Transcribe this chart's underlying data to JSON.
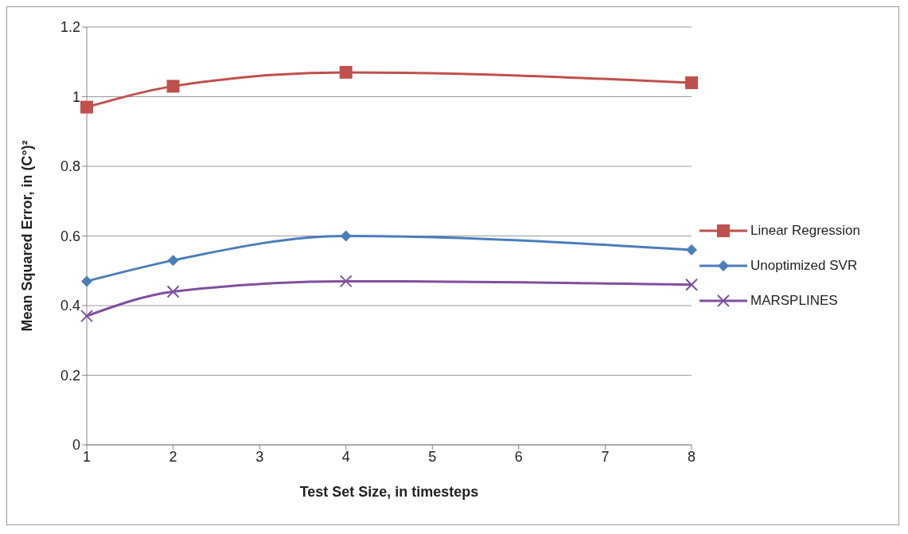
{
  "chart_data": {
    "type": "line",
    "xlabel": "Test Set Size, in timesteps",
    "ylabel": "Mean Squared Error, in (C°)²",
    "x": [
      1,
      2,
      4,
      8
    ],
    "series": [
      {
        "name": "Linear Regression",
        "color": "#c0504d",
        "marker": "square",
        "values": [
          0.97,
          1.03,
          1.07,
          1.04
        ]
      },
      {
        "name": "Unoptimized SVR",
        "color": "#4a7ebb",
        "marker": "diamond",
        "values": [
          0.47,
          0.53,
          0.6,
          0.56
        ]
      },
      {
        "name": "MARSPLINES",
        "color": "#7f4f9f",
        "marker": "cross",
        "values": [
          0.37,
          0.44,
          0.47,
          0.46
        ]
      }
    ],
    "xlim": [
      1,
      8
    ],
    "xticks": [
      1,
      2,
      3,
      4,
      5,
      6,
      7,
      8
    ],
    "ylim": [
      0,
      1.2
    ],
    "yticks": [
      0,
      0.2,
      0.4,
      0.6,
      0.8,
      1,
      1.2
    ],
    "grid": "y",
    "legend": "right",
    "line_style": "solid"
  }
}
